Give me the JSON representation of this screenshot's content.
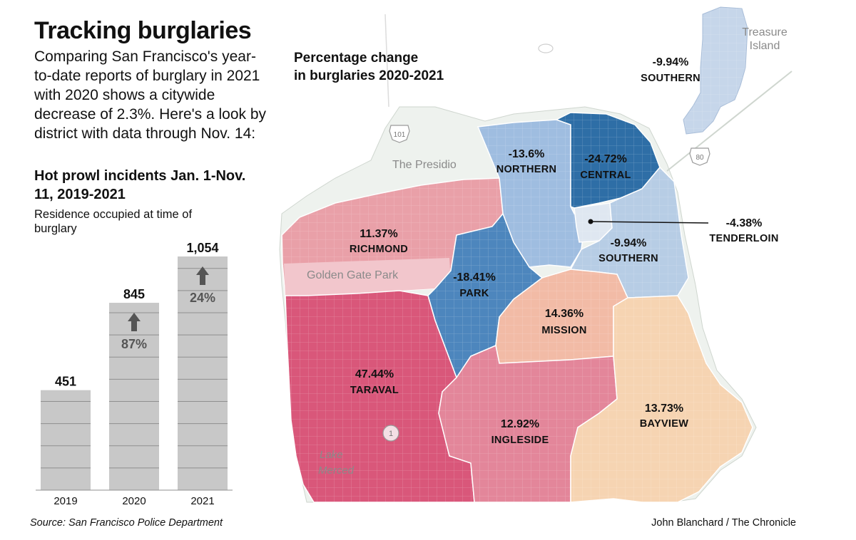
{
  "header": {
    "title": "Tracking burglaries",
    "intro": "Comparing San Francisco's year-to-date reports of burglary in 2021 with 2020 shows a citywide decrease of 2.3%. Here's a look by district with data through Nov. 14:"
  },
  "hot_prowl": {
    "title": "Hot prowl incidents Jan. 1-Nov. 11, 2019-2021",
    "subtitle": "Residence occupied at time of burglary"
  },
  "chart_data": {
    "type": "bar",
    "title": "Hot prowl incidents Jan. 1-Nov. 11, 2019-2021",
    "subtitle": "Residence occupied at time of burglary",
    "categories": [
      "2019",
      "2020",
      "2021"
    ],
    "values": [
      451,
      845,
      1054
    ],
    "value_labels": [
      "451",
      "845",
      "1,054"
    ],
    "change_labels": [
      "",
      "87%",
      "24%"
    ],
    "ylim": [
      0,
      1054
    ],
    "grid_step": 100,
    "bar_color": "#c8c8c8"
  },
  "map": {
    "title": "Percentage change in burglaries 2020-2021",
    "title_lines": [
      "Percentage change",
      "in burglaries 2020-2021"
    ],
    "districts": [
      {
        "name": "NORTHERN",
        "change": "-13.6%",
        "color": "#9fbde0"
      },
      {
        "name": "CENTRAL",
        "change": "-24.72%",
        "color": "#2e6ea6"
      },
      {
        "name": "TENDERLOIN",
        "change": "-4.38%",
        "color": "#dfe7f1"
      },
      {
        "name": "SOUTHERN",
        "change": "-9.94%",
        "color": "#b7cde5"
      },
      {
        "name": "SOUTHERN",
        "change": "-9.94%",
        "color": "#b7cde5"
      },
      {
        "name": "RICHMOND",
        "change": "11.37%",
        "color": "#e9a0a8"
      },
      {
        "name": "PARK",
        "change": "-18.41%",
        "color": "#4d86bd"
      },
      {
        "name": "MISSION",
        "change": "14.36%",
        "color": "#f2bba6"
      },
      {
        "name": "TARAVAL",
        "change": "47.44%",
        "color": "#d9577a"
      },
      {
        "name": "INGLESIDE",
        "change": "12.92%",
        "color": "#e3869a"
      },
      {
        "name": "BAYVIEW",
        "change": "13.73%",
        "color": "#f6d4b2"
      }
    ],
    "places": {
      "presidio": "The Presidio",
      "golden_gate_park": "Golden Gate Park",
      "lake_merced": [
        "Lake",
        "Merced"
      ],
      "treasure_island": [
        "Treasure",
        "Island"
      ]
    },
    "highways": [
      "101",
      "80",
      "1"
    ]
  },
  "footer": {
    "source": "Source: San Francisco Police Department",
    "credit": "John Blanchard / The Chronicle"
  }
}
